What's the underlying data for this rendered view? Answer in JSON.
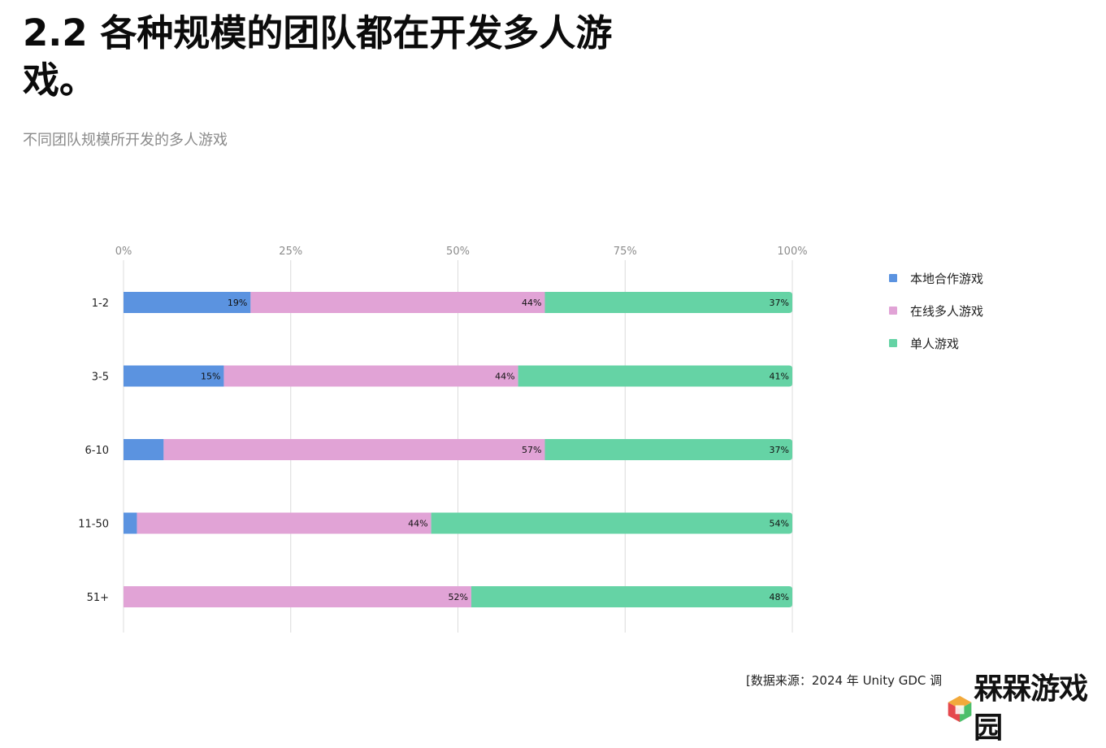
{
  "header": {
    "title": "2.2 各种规模的团队都在开发多人游戏。",
    "subtitle": "不同团队规模所开发的多人游戏"
  },
  "chart_data": {
    "type": "bar",
    "orientation": "horizontal",
    "stacked": true,
    "categories": [
      "1-2",
      "3-5",
      "6-10",
      "11-50",
      "51+"
    ],
    "series": [
      {
        "name": "本地合作游戏",
        "values": [
          19,
          15,
          6,
          2,
          0
        ],
        "color": "#5b93e0"
      },
      {
        "name": "在线多人游戏",
        "values": [
          44,
          44,
          57,
          44,
          52
        ],
        "color": "#e1a3d6"
      },
      {
        "name": "单人游戏",
        "values": [
          37,
          41,
          37,
          54,
          48
        ],
        "color": "#65d3a5"
      }
    ],
    "xlim": [
      0,
      100
    ],
    "xticks": [
      "0%",
      "25%",
      "50%",
      "75%",
      "100%"
    ],
    "grid": true,
    "legend_position": "right"
  },
  "legend": {
    "items": [
      {
        "label": "本地合作游戏",
        "color": "#5b93e0"
      },
      {
        "label": "在线多人游戏",
        "color": "#e1a3d6"
      },
      {
        "label": "单人游戏",
        "color": "#65d3a5"
      }
    ]
  },
  "footer": {
    "source": "[数据来源：2024 年 Unity GDC 调"
  },
  "watermark": {
    "text": "槑槑游戏园",
    "icon": "colorful-cube-logo"
  }
}
